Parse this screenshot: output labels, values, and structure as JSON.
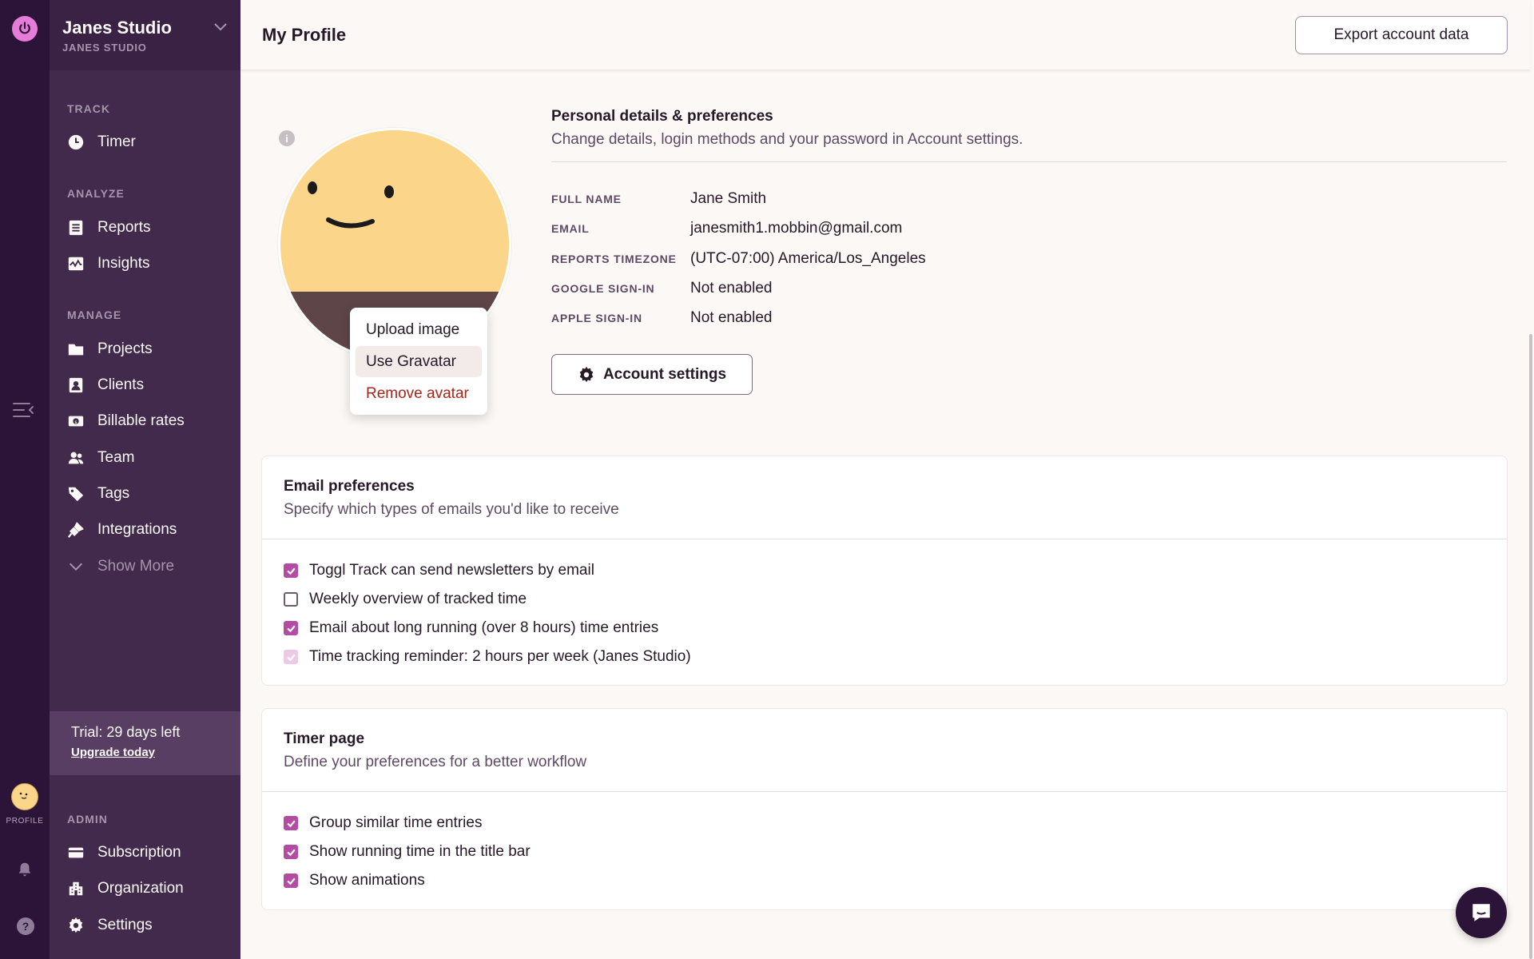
{
  "rail": {
    "profile_label": "PROFILE"
  },
  "workspace": {
    "name": "Janes Studio",
    "subtitle": "JANES STUDIO"
  },
  "nav": {
    "track_label": "TRACK",
    "timer": "Timer",
    "analyze_label": "ANALYZE",
    "reports": "Reports",
    "insights": "Insights",
    "manage_label": "MANAGE",
    "projects": "Projects",
    "clients": "Clients",
    "billable_rates": "Billable rates",
    "team": "Team",
    "tags": "Tags",
    "integrations": "Integrations",
    "show_more": "Show More",
    "admin_label": "ADMIN",
    "subscription": "Subscription",
    "organization": "Organization",
    "settings": "Settings"
  },
  "trial": {
    "text": "Trial: 29 days left",
    "link": "Upgrade today"
  },
  "header": {
    "title": "My Profile",
    "export_label": "Export account data"
  },
  "avatar_menu": {
    "upload": "Upload image",
    "gravatar": "Use Gravatar",
    "remove": "Remove avatar"
  },
  "personal": {
    "title": "Personal details & preferences",
    "subtitle": "Change details, login methods and your password in Account settings.",
    "fields": [
      {
        "label": "FULL NAME",
        "value": "Jane Smith"
      },
      {
        "label": "EMAIL",
        "value": "janesmith1.mobbin@gmail.com"
      },
      {
        "label": "REPORTS TIMEZONE",
        "value": "(UTC-07:00) America/Los_Angeles"
      },
      {
        "label": "GOOGLE SIGN-IN",
        "value": "Not enabled"
      },
      {
        "label": "APPLE SIGN-IN",
        "value": "Not enabled"
      }
    ],
    "account_settings_label": "Account settings"
  },
  "email_prefs": {
    "title": "Email preferences",
    "subtitle": "Specify which types of emails you'd like to receive",
    "options": [
      {
        "label": "Toggl Track can send newsletters by email",
        "checked": true
      },
      {
        "label": "Weekly overview of tracked time",
        "checked": false
      },
      {
        "label": "Email about long running (over 8 hours) time entries",
        "checked": true
      },
      {
        "label": "Time tracking reminder: 2 hours per week (Janes Studio)",
        "checked": true,
        "disabled": true
      }
    ]
  },
  "timer_page": {
    "title": "Timer page",
    "subtitle": "Define your preferences for a better workflow",
    "options": [
      {
        "label": "Group similar time entries",
        "checked": true
      },
      {
        "label": "Show running time in the title bar",
        "checked": true
      },
      {
        "label": "Show animations",
        "checked": true
      }
    ]
  },
  "colors": {
    "sidebar_bg": "#412a4c",
    "rail_bg": "#2c1338",
    "accent": "#b44ca3",
    "danger": "#a4271c"
  },
  "icons": [
    "power-icon",
    "chevron-down-icon",
    "collapse-menu-icon",
    "bell-icon",
    "help-icon",
    "clock-icon",
    "report-icon",
    "insights-icon",
    "folder-icon",
    "client-icon",
    "billable-icon",
    "team-icon",
    "tag-icon",
    "plug-icon",
    "building-icon",
    "card-icon",
    "gear-icon",
    "info-icon",
    "chat-icon"
  ]
}
